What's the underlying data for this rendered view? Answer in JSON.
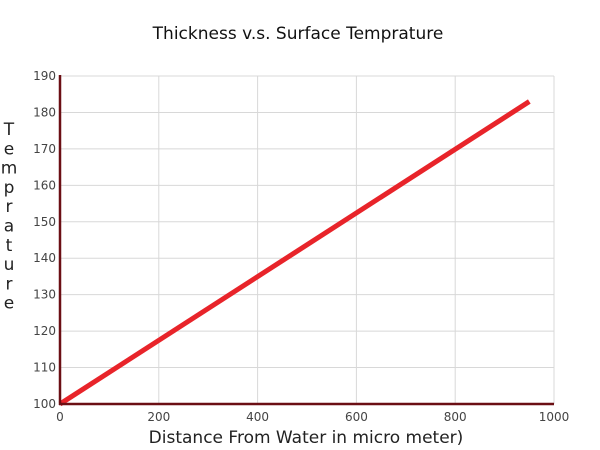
{
  "chart_data": {
    "type": "line",
    "title": "Thickness v.s. Surface Temprature",
    "xlabel": "Distance From Water in micro meter)",
    "ylabel": "Temprature",
    "xlim": [
      0,
      1000
    ],
    "ylim": [
      100,
      190
    ],
    "xticks": [
      0,
      200,
      400,
      600,
      800,
      1000
    ],
    "yticks": [
      100,
      110,
      120,
      130,
      140,
      150,
      160,
      170,
      180,
      190
    ],
    "grid": true,
    "series": [
      {
        "name": "Temprature",
        "color": "#e8242a",
        "x": [
          0,
          950
        ],
        "y": [
          100,
          183
        ]
      }
    ],
    "axis_color": "#6b0f14",
    "grid_color": "#d8d8d8"
  }
}
